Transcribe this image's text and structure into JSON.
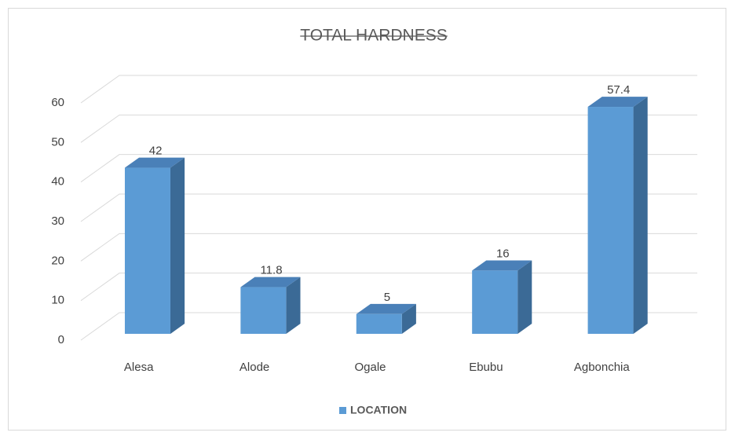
{
  "chart_data": {
    "type": "bar3d",
    "title": "TOTAL HARDNESS",
    "categories": [
      "Alesa",
      "Alode",
      "Ogale",
      "Ebubu",
      "Agbonchia"
    ],
    "series": [
      {
        "name": "LOCATION",
        "color": "#5b9bd5",
        "values": [
          42,
          11.8,
          5,
          16,
          57.4
        ]
      }
    ],
    "ylim": [
      0,
      60
    ],
    "yticks": [
      0,
      10,
      20,
      30,
      40,
      50,
      60
    ],
    "grid": true,
    "legend": "bottom"
  }
}
